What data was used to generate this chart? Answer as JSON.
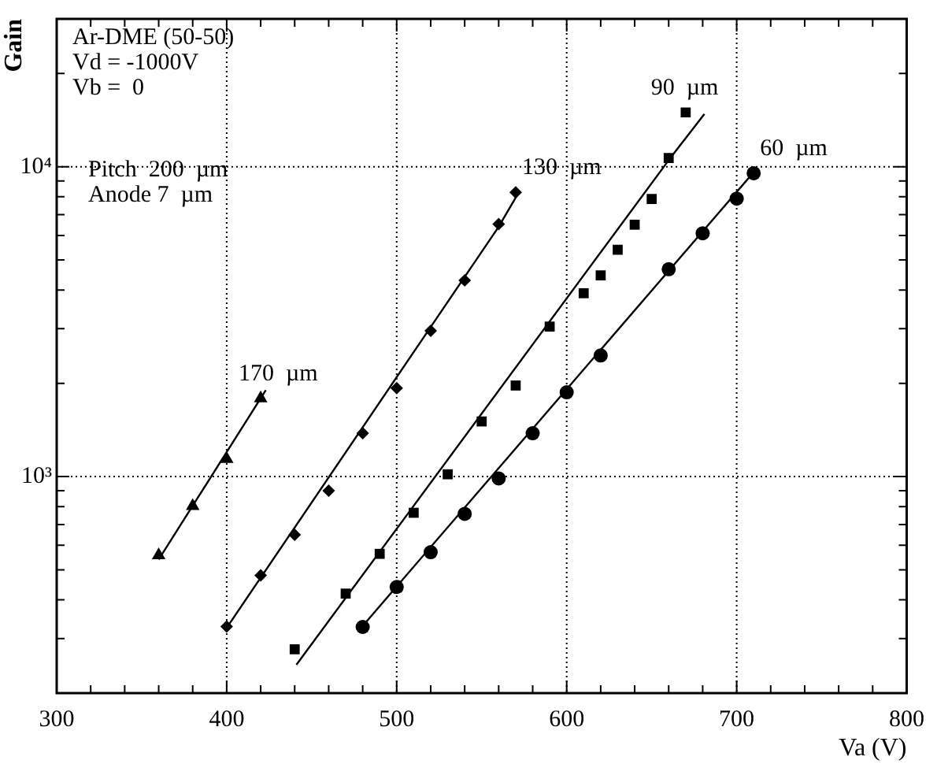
{
  "chart_data": {
    "type": "scatter",
    "xlabel": "Va (V)",
    "ylabel": "Gain",
    "log": "y",
    "grid": true,
    "line_style": "dotted",
    "legend": false,
    "xlim": [
      300,
      800
    ],
    "ylim": [
      200,
      30000
    ],
    "xticks": [
      300,
      {
        "value": 320,
        "label": null
      },
      {
        "value": 340,
        "label": null
      },
      {
        "value": 360,
        "label": null
      },
      {
        "value": 380,
        "label": null
      },
      400,
      {
        "value": 420,
        "label": null
      },
      {
        "value": 440,
        "label": null
      },
      {
        "value": 460,
        "label": null
      },
      {
        "value": 480,
        "label": null
      },
      500,
      {
        "value": 520,
        "label": null
      },
      {
        "value": 540,
        "label": null
      },
      {
        "value": 560,
        "label": null
      },
      {
        "value": 580,
        "label": null
      },
      600,
      {
        "value": 620,
        "label": null
      },
      {
        "value": 640,
        "label": null
      },
      {
        "value": 660,
        "label": null
      },
      {
        "value": 680,
        "label": null
      },
      700,
      {
        "value": 720,
        "label": null
      },
      {
        "value": 740,
        "label": null
      },
      {
        "value": 760,
        "label": null
      },
      {
        "value": 780,
        "label": null
      },
      800
    ],
    "yticks": [
      {
        "value": 300,
        "label": null
      },
      {
        "value": 400,
        "label": null
      },
      {
        "value": 500,
        "label": null
      },
      {
        "value": 600,
        "label": null
      },
      {
        "value": 700,
        "label": null
      },
      {
        "value": 800,
        "label": null
      },
      {
        "value": 900,
        "label": null
      },
      {
        "value": 1000,
        "label": "10³"
      },
      {
        "value": 2000,
        "label": null
      },
      {
        "value": 3000,
        "label": null
      },
      {
        "value": 4000,
        "label": null
      },
      {
        "value": 5000,
        "label": null
      },
      {
        "value": 6000,
        "label": null
      },
      {
        "value": 7000,
        "label": null
      },
      {
        "value": 8000,
        "label": null
      },
      {
        "value": 9000,
        "label": null
      },
      {
        "value": 10000,
        "label": "10⁴"
      },
      {
        "value": 20000,
        "label": null
      }
    ],
    "annotations": [
      "Ar-DME (50-50)",
      "Vd = -1000V",
      "Vb =  0",
      "Pitch  200  µm",
      "Anode 7  µm"
    ],
    "series": [
      {
        "name": "170  µm",
        "color": "#000000",
        "marker": "triangle",
        "x": [
          360,
          380,
          400,
          420
        ],
        "values": [
          557,
          803,
          1140,
          1787
        ]
      },
      {
        "name": "130  µm",
        "color": "#000000",
        "marker": "diamond",
        "x": [
          400,
          420,
          440,
          460,
          480,
          500,
          520,
          540,
          560,
          570
        ],
        "values": [
          328,
          480,
          649,
          900,
          1380,
          1930,
          2954,
          4295,
          6530,
          8260
        ]
      },
      {
        "name": "90  µm",
        "color": "#000000",
        "marker": "square",
        "x": [
          440,
          470,
          490,
          510,
          530,
          550,
          570,
          590,
          610,
          620,
          630,
          640,
          650,
          660,
          670
        ],
        "values": [
          277,
          419,
          563,
          764,
          1017,
          1506,
          1967,
          3048,
          3906,
          4460,
          5395,
          6500,
          7866,
          10670,
          14970
        ]
      },
      {
        "name": "60  µm",
        "color": "#000000",
        "marker": "circle",
        "x": [
          480,
          500,
          520,
          540,
          560,
          580,
          600,
          620,
          660,
          680,
          700,
          710
        ],
        "values": [
          327,
          440,
          570,
          758,
          986,
          1380,
          1871,
          2460,
          4670,
          6100,
          7890,
          9530
        ]
      },
      {
        "type": "line",
        "color": "#000000",
        "marker": "none",
        "line_style": "solid",
        "x": [
          360,
          423
        ],
        "values": [
          540,
          1900
        ]
      },
      {
        "type": "line",
        "color": "#000000",
        "marker": "none",
        "line_style": "solid",
        "x": [
          400,
          560,
          572
        ],
        "values": [
          325,
          6400,
          8300
        ]
      },
      {
        "type": "line",
        "color": "#000000",
        "marker": "none",
        "line_style": "solid",
        "x": [
          441,
          660,
          681
        ],
        "values": [
          247,
          10500,
          14800
        ]
      },
      {
        "type": "line",
        "color": "#000000",
        "marker": "none",
        "line_style": "solid",
        "x": [
          478,
          710
        ],
        "values": [
          320,
          9600
        ]
      }
    ]
  }
}
